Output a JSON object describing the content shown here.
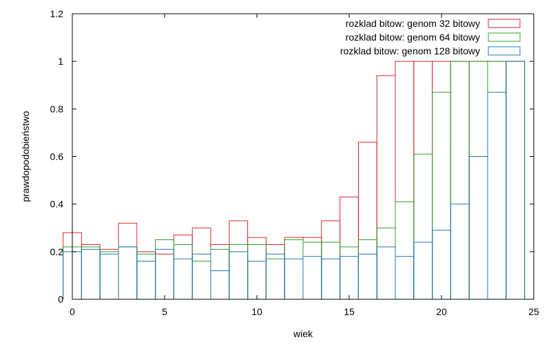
{
  "chart_data": {
    "type": "bar",
    "style": "histogram-steps",
    "xlabel": "wiek",
    "ylabel": "prawdopodobieństwo",
    "xlim": [
      0,
      25
    ],
    "ylim": [
      0,
      1.2
    ],
    "xticks": [
      0,
      5,
      10,
      15,
      20,
      25
    ],
    "yticks": [
      0,
      0.2,
      0.4,
      0.6,
      0.8,
      1,
      1.2
    ],
    "legend_position": "top-right",
    "grid": false,
    "x": [
      0,
      1,
      2,
      3,
      4,
      5,
      6,
      7,
      8,
      9,
      10,
      11,
      12,
      13,
      14,
      15,
      16,
      17,
      18,
      19,
      20,
      21,
      22,
      23,
      24
    ],
    "series": [
      {
        "name": "rozklad bitow: genom 32 bitowy",
        "color": "#d62728",
        "values": [
          0.28,
          0.23,
          0.21,
          0.32,
          0.2,
          0.19,
          0.27,
          0.3,
          0.23,
          0.33,
          0.26,
          0.23,
          0.26,
          0.26,
          0.33,
          0.43,
          0.66,
          0.94,
          1,
          1,
          1,
          1,
          1,
          1,
          1
        ]
      },
      {
        "name": "rozklad bitow: genom 64 bitowy",
        "color": "#2ca02c",
        "values": [
          0.22,
          0.22,
          0.2,
          0.22,
          0.19,
          0.25,
          0.23,
          0.16,
          0.21,
          0.23,
          0.23,
          0.17,
          0.25,
          0.24,
          0.24,
          0.22,
          0.25,
          0.3,
          0.41,
          0.61,
          0.87,
          1,
          1,
          1,
          1
        ]
      },
      {
        "name": "rozklad bitow: genom 128 bitowy",
        "color": "#1f77b4",
        "values": [
          0.2,
          0.21,
          0.19,
          0.22,
          0.16,
          0.21,
          0.17,
          0.19,
          0.12,
          0.2,
          0.16,
          0.19,
          0.17,
          0.18,
          0.17,
          0.18,
          0.19,
          0.22,
          0.18,
          0.24,
          0.29,
          0.4,
          0.6,
          0.87,
          1
        ]
      }
    ]
  }
}
